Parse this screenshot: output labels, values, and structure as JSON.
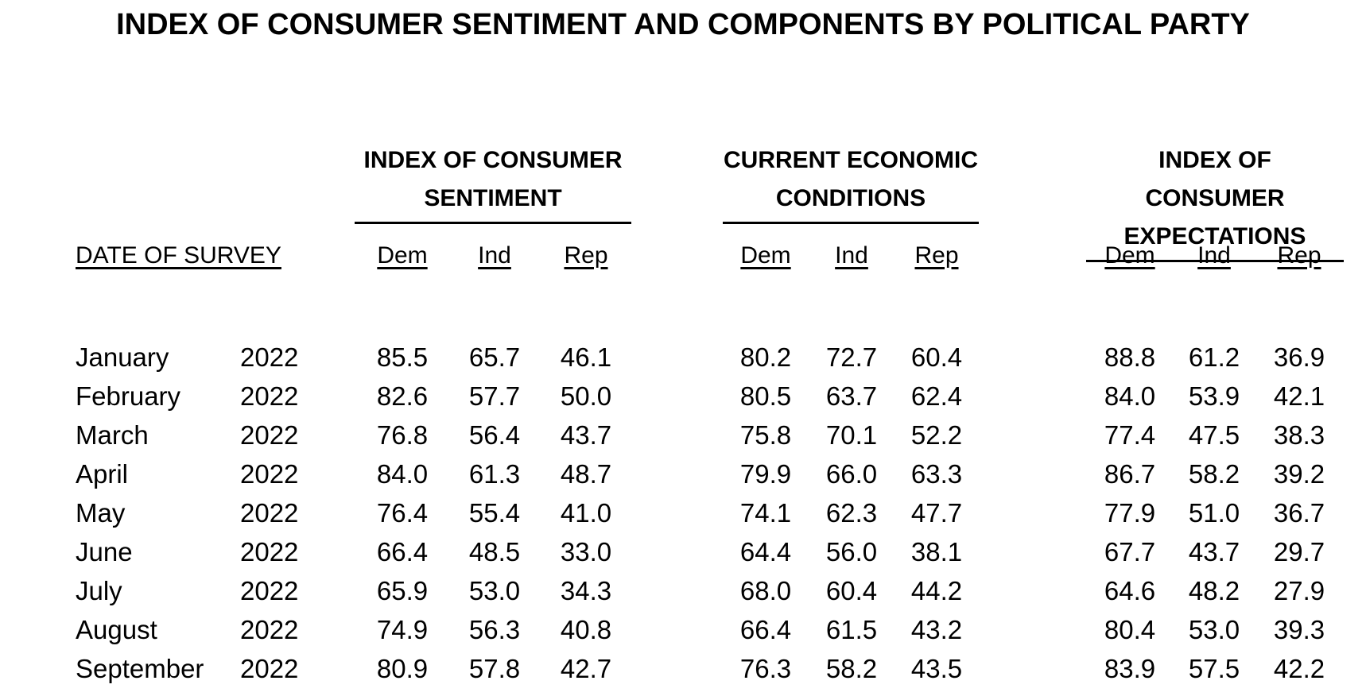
{
  "title": "INDEX OF CONSUMER SENTIMENT AND COMPONENTS BY POLITICAL PARTY",
  "date_header": "DATE OF SURVEY",
  "groups": [
    {
      "line1": "INDEX OF CONSUMER",
      "line2": "SENTIMENT"
    },
    {
      "line1": "CURRENT ECONOMIC",
      "line2": "CONDITIONS"
    },
    {
      "line1": "INDEX OF CONSUMER",
      "line2": "EXPECTATIONS"
    }
  ],
  "party_labels": [
    "Dem",
    "Ind",
    "Rep"
  ],
  "rows": [
    {
      "month": "January",
      "year": "2022",
      "values": [
        "85.5",
        "65.7",
        "46.1",
        "80.2",
        "72.7",
        "60.4",
        "88.8",
        "61.2",
        "36.9"
      ]
    },
    {
      "month": "February",
      "year": "2022",
      "values": [
        "82.6",
        "57.7",
        "50.0",
        "80.5",
        "63.7",
        "62.4",
        "84.0",
        "53.9",
        "42.1"
      ]
    },
    {
      "month": "March",
      "year": "2022",
      "values": [
        "76.8",
        "56.4",
        "43.7",
        "75.8",
        "70.1",
        "52.2",
        "77.4",
        "47.5",
        "38.3"
      ]
    },
    {
      "month": "April",
      "year": "2022",
      "values": [
        "84.0",
        "61.3",
        "48.7",
        "79.9",
        "66.0",
        "63.3",
        "86.7",
        "58.2",
        "39.2"
      ]
    },
    {
      "month": "May",
      "year": "2022",
      "values": [
        "76.4",
        "55.4",
        "41.0",
        "74.1",
        "62.3",
        "47.7",
        "77.9",
        "51.0",
        "36.7"
      ]
    },
    {
      "month": "June",
      "year": "2022",
      "values": [
        "66.4",
        "48.5",
        "33.0",
        "64.4",
        "56.0",
        "38.1",
        "67.7",
        "43.7",
        "29.7"
      ]
    },
    {
      "month": "July",
      "year": "2022",
      "values": [
        "65.9",
        "53.0",
        "34.3",
        "68.0",
        "60.4",
        "44.2",
        "64.6",
        "48.2",
        "27.9"
      ]
    },
    {
      "month": "August",
      "year": "2022",
      "values": [
        "74.9",
        "56.3",
        "40.8",
        "66.4",
        "61.5",
        "43.2",
        "80.4",
        "53.0",
        "39.3"
      ]
    },
    {
      "month": "September",
      "year": "2022",
      "values": [
        "80.9",
        "57.8",
        "42.7",
        "76.3",
        "58.2",
        "43.5",
        "83.9",
        "57.5",
        "42.2"
      ]
    }
  ]
}
